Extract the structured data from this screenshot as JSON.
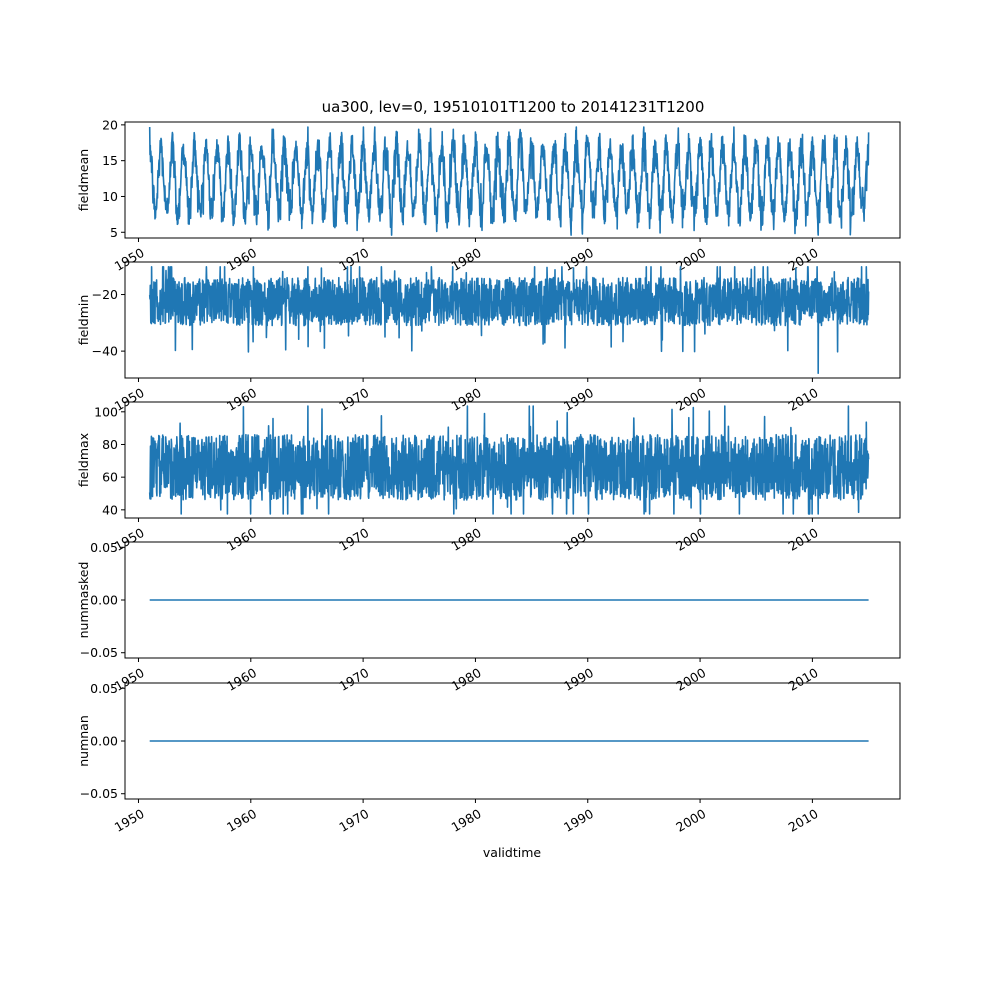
{
  "figure": {
    "title": "ua300, lev=0, 19510101T1200 to 20141231T1200",
    "xlabel": "validtime",
    "series_color": "#1f77b4"
  },
  "chart_data": [
    {
      "type": "line",
      "name": "fieldmean",
      "ylabel": "fieldmean",
      "x_range": [
        1948.8,
        2017.8
      ],
      "x_ticks": [
        1950,
        1960,
        1970,
        1980,
        1990,
        2000,
        2010
      ],
      "x_tick_labels": [
        "1950",
        "1960",
        "1970",
        "1980",
        "1990",
        "2000",
        "2010"
      ],
      "x_start": 1951.0,
      "x_end": 2015.0,
      "ylim": [
        4.2,
        20.4
      ],
      "y_ticks": [
        5,
        10,
        15,
        20
      ],
      "y_tick_labels": [
        "5",
        "10",
        "15",
        "20"
      ],
      "signal": {
        "kind": "seasonal",
        "mean": 12.3,
        "amplitude": 4.6,
        "noise": 1.7,
        "min": 4.6,
        "max": 19.7
      }
    },
    {
      "type": "line",
      "name": "fieldmin",
      "ylabel": "fieldmin",
      "x_range": [
        1948.8,
        2017.8
      ],
      "x_ticks": [
        1950,
        1960,
        1970,
        1980,
        1990,
        2000,
        2010
      ],
      "x_tick_labels": [
        "1950",
        "1960",
        "1970",
        "1980",
        "1990",
        "2000",
        "2010"
      ],
      "x_start": 1951.0,
      "x_end": 2015.0,
      "ylim": [
        -49.5,
        -8.5
      ],
      "y_ticks": [
        -40,
        -20
      ],
      "y_tick_labels": [
        "−40",
        "−20"
      ],
      "signal": {
        "kind": "noisy",
        "center": -22,
        "band_low": -31,
        "band_high": -14,
        "min": -47.8,
        "max": -10.2
      }
    },
    {
      "type": "line",
      "name": "fieldmax",
      "ylabel": "fieldmax",
      "x_range": [
        1948.8,
        2017.8
      ],
      "x_ticks": [
        1950,
        1960,
        1970,
        1980,
        1990,
        2000,
        2010
      ],
      "x_tick_labels": [
        "1950",
        "1960",
        "1970",
        "1980",
        "1990",
        "2000",
        "2010"
      ],
      "x_start": 1951.0,
      "x_end": 2015.0,
      "ylim": [
        35,
        106
      ],
      "y_ticks": [
        40,
        60,
        80,
        100
      ],
      "y_tick_labels": [
        "40",
        "60",
        "80",
        "100"
      ],
      "signal": {
        "kind": "noisy",
        "center": 64,
        "band_low": 46,
        "band_high": 86,
        "min": 37.5,
        "max": 103.5
      }
    },
    {
      "type": "line",
      "name": "nummasked",
      "ylabel": "nummasked",
      "x_range": [
        1948.8,
        2017.8
      ],
      "x_ticks": [
        1950,
        1960,
        1970,
        1980,
        1990,
        2000,
        2010
      ],
      "x_tick_labels": [
        "1950",
        "1960",
        "1970",
        "1980",
        "1990",
        "2000",
        "2010"
      ],
      "x_start": 1951.0,
      "x_end": 2015.0,
      "ylim": [
        -0.055,
        0.055
      ],
      "y_ticks": [
        -0.05,
        0.0,
        0.05
      ],
      "y_tick_labels": [
        "−0.05",
        "0.00",
        "0.05"
      ],
      "signal": {
        "kind": "constant",
        "value": 0.0
      }
    },
    {
      "type": "line",
      "name": "numnan",
      "ylabel": "numnan",
      "x_range": [
        1948.8,
        2017.8
      ],
      "x_ticks": [
        1950,
        1960,
        1970,
        1980,
        1990,
        2000,
        2010
      ],
      "x_tick_labels": [
        "1950",
        "1960",
        "1970",
        "1980",
        "1990",
        "2000",
        "2010"
      ],
      "x_start": 1951.0,
      "x_end": 2015.0,
      "ylim": [
        -0.055,
        0.055
      ],
      "y_ticks": [
        -0.05,
        0.0,
        0.05
      ],
      "y_tick_labels": [
        "−0.05",
        "0.00",
        "0.05"
      ],
      "signal": {
        "kind": "constant",
        "value": 0.0
      }
    }
  ]
}
